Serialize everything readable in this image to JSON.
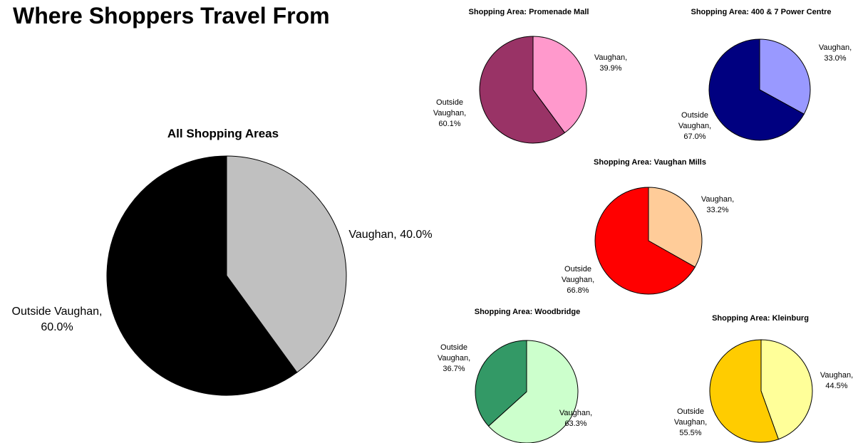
{
  "page": {
    "title": "Where Shoppers Travel From"
  },
  "chart_data": [
    {
      "type": "pie",
      "title": "All Shopping Areas",
      "slices": [
        {
          "label": "Vaughan, 40.0%",
          "value": 40.0,
          "color": "#C0C0C0"
        },
        {
          "label": "Outside Vaughan, 60.0%",
          "value": 60.0,
          "color": "#000000"
        }
      ]
    },
    {
      "type": "pie",
      "title": "Shopping Area: Promenade Mall",
      "slices": [
        {
          "label": "Vaughan, 39.9%",
          "value": 39.9,
          "color": "#FF99CC"
        },
        {
          "label": "Outside Vaughan, 60.1%",
          "value": 60.1,
          "color": "#993366"
        }
      ]
    },
    {
      "type": "pie",
      "title": "Shopping Area: 400 & 7 Power Centre",
      "slices": [
        {
          "label": "Vaughan, 33.0%",
          "value": 33.0,
          "color": "#9999FF"
        },
        {
          "label": "Outside Vaughan, 67.0%",
          "value": 67.0,
          "color": "#000080"
        }
      ]
    },
    {
      "type": "pie",
      "title": "Shopping Area: Vaughan Mills",
      "slices": [
        {
          "label": "Vaughan, 33.2%",
          "value": 33.2,
          "color": "#FFCC99"
        },
        {
          "label": "Outside Vaughan, 66.8%",
          "value": 66.8,
          "color": "#FF0000"
        }
      ]
    },
    {
      "type": "pie",
      "title": "Shopping Area: Woodbridge",
      "slices": [
        {
          "label": "Vaughan, 63.3%",
          "value": 63.3,
          "color": "#CCFFCC"
        },
        {
          "label": "Outside Vaughan, 36.7%",
          "value": 36.7,
          "color": "#339966"
        }
      ]
    },
    {
      "type": "pie",
      "title": "Shopping Area: Kleinburg",
      "slices": [
        {
          "label": "Vaughan, 44.5%",
          "value": 44.5,
          "color": "#FFFF99"
        },
        {
          "label": "Outside Vaughan, 55.5%",
          "value": 55.5,
          "color": "#FFCC00"
        }
      ]
    }
  ]
}
